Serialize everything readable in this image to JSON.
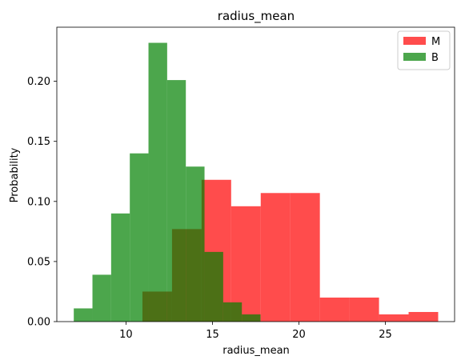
{
  "chart_data": {
    "type": "histogram",
    "title": "radius_mean",
    "xlabel": "radius_mean",
    "ylabel": "Probability",
    "xlim": [
      6.0,
      29.0
    ],
    "ylim": [
      0,
      0.245
    ],
    "xticks": [
      10,
      15,
      20,
      25
    ],
    "yticks": [
      0.0,
      0.05,
      0.1,
      0.15,
      0.2
    ],
    "ytick_labels": [
      "0.00",
      "0.05",
      "0.10",
      "0.15",
      "0.20"
    ],
    "grid": false,
    "legend": "top-right",
    "series": [
      {
        "name": "M",
        "color": "#ff0000",
        "alpha": 0.7,
        "bins": [
          [
            10.95,
            12.66,
            0.025
          ],
          [
            12.66,
            14.37,
            0.077
          ],
          [
            14.37,
            16.08,
            0.118
          ],
          [
            16.08,
            17.79,
            0.096
          ],
          [
            17.79,
            19.5,
            0.107
          ],
          [
            19.5,
            21.21,
            0.107
          ],
          [
            21.21,
            22.92,
            0.02
          ],
          [
            22.92,
            24.63,
            0.02
          ],
          [
            24.63,
            26.34,
            0.006
          ],
          [
            26.34,
            28.05,
            0.008
          ]
        ]
      },
      {
        "name": "B",
        "color": "#008000",
        "alpha": 0.7,
        "bins": [
          [
            6.98,
            8.06,
            0.011
          ],
          [
            8.06,
            9.14,
            0.039
          ],
          [
            9.14,
            10.22,
            0.09
          ],
          [
            10.22,
            11.3,
            0.14
          ],
          [
            11.3,
            12.38,
            0.232
          ],
          [
            12.38,
            13.46,
            0.201
          ],
          [
            13.46,
            14.54,
            0.129
          ],
          [
            14.54,
            15.62,
            0.058
          ],
          [
            15.62,
            16.7,
            0.016
          ],
          [
            16.7,
            17.78,
            0.006
          ]
        ]
      }
    ]
  }
}
